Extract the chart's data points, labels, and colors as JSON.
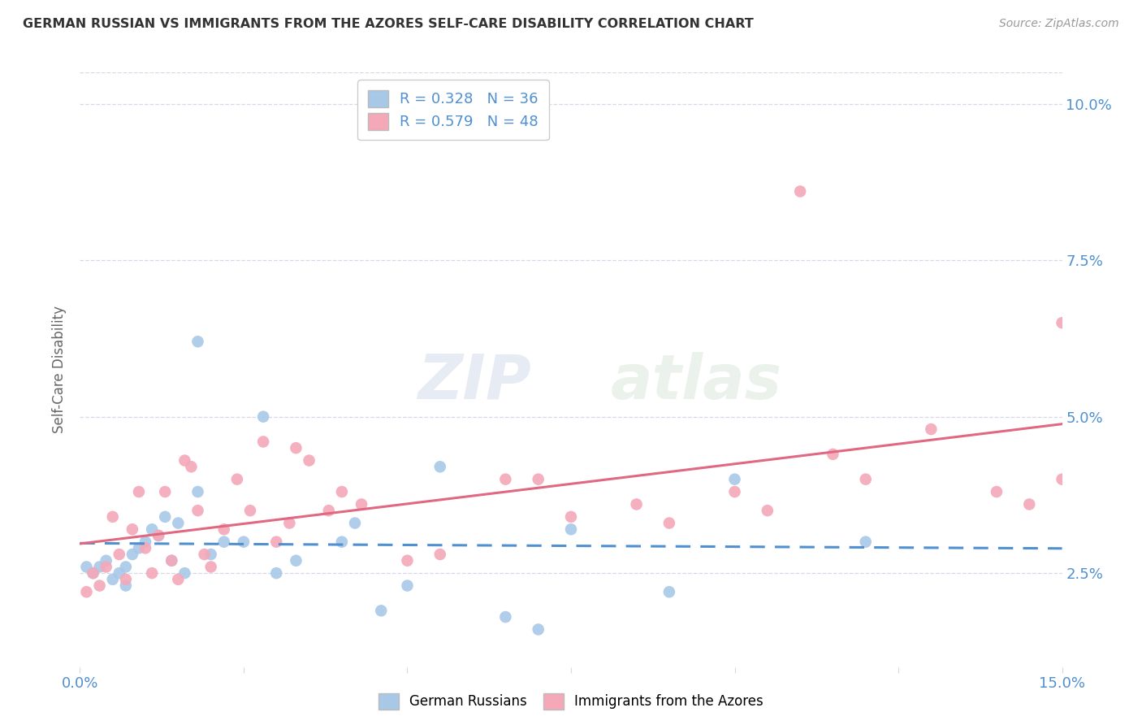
{
  "title": "GERMAN RUSSIAN VS IMMIGRANTS FROM THE AZORES SELF-CARE DISABILITY CORRELATION CHART",
  "source": "Source: ZipAtlas.com",
  "ylabel": "Self-Care Disability",
  "xlim": [
    0.0,
    0.15
  ],
  "ylim": [
    0.01,
    0.105
  ],
  "yticks": [
    0.025,
    0.05,
    0.075,
    0.1
  ],
  "ytick_labels": [
    "2.5%",
    "5.0%",
    "7.5%",
    "10.0%"
  ],
  "xticks": [
    0.0,
    0.025,
    0.05,
    0.075,
    0.1,
    0.125,
    0.15
  ],
  "xtick_labels": [
    "0.0%",
    "",
    "",
    "",
    "",
    "",
    "15.0%"
  ],
  "r_blue": 0.328,
  "n_blue": 36,
  "r_pink": 0.579,
  "n_pink": 48,
  "blue_color": "#a8c8e8",
  "pink_color": "#f4a8b8",
  "blue_line_color": "#5090d0",
  "pink_line_color": "#e06880",
  "legend_label_blue": "German Russians",
  "legend_label_pink": "Immigrants from the Azores",
  "blue_x": [
    0.001,
    0.002,
    0.003,
    0.004,
    0.005,
    0.006,
    0.007,
    0.007,
    0.008,
    0.009,
    0.01,
    0.011,
    0.012,
    0.013,
    0.014,
    0.015,
    0.016,
    0.018,
    0.018,
    0.02,
    0.022,
    0.025,
    0.028,
    0.03,
    0.033,
    0.04,
    0.042,
    0.046,
    0.05,
    0.055,
    0.065,
    0.07,
    0.075,
    0.09,
    0.1,
    0.12
  ],
  "blue_y": [
    0.026,
    0.025,
    0.026,
    0.027,
    0.024,
    0.025,
    0.023,
    0.026,
    0.028,
    0.029,
    0.03,
    0.032,
    0.031,
    0.034,
    0.027,
    0.033,
    0.025,
    0.038,
    0.062,
    0.028,
    0.03,
    0.03,
    0.05,
    0.025,
    0.027,
    0.03,
    0.033,
    0.019,
    0.023,
    0.042,
    0.018,
    0.016,
    0.032,
    0.022,
    0.04,
    0.03
  ],
  "pink_x": [
    0.001,
    0.002,
    0.003,
    0.004,
    0.005,
    0.006,
    0.007,
    0.008,
    0.009,
    0.01,
    0.011,
    0.012,
    0.013,
    0.014,
    0.015,
    0.016,
    0.017,
    0.018,
    0.019,
    0.02,
    0.022,
    0.024,
    0.026,
    0.028,
    0.03,
    0.032,
    0.033,
    0.035,
    0.038,
    0.04,
    0.043,
    0.05,
    0.055,
    0.065,
    0.07,
    0.075,
    0.085,
    0.09,
    0.1,
    0.105,
    0.11,
    0.115,
    0.12,
    0.13,
    0.14,
    0.145,
    0.15,
    0.15
  ],
  "pink_y": [
    0.022,
    0.025,
    0.023,
    0.026,
    0.034,
    0.028,
    0.024,
    0.032,
    0.038,
    0.029,
    0.025,
    0.031,
    0.038,
    0.027,
    0.024,
    0.043,
    0.042,
    0.035,
    0.028,
    0.026,
    0.032,
    0.04,
    0.035,
    0.046,
    0.03,
    0.033,
    0.045,
    0.043,
    0.035,
    0.038,
    0.036,
    0.027,
    0.028,
    0.04,
    0.04,
    0.034,
    0.036,
    0.033,
    0.038,
    0.035,
    0.086,
    0.044,
    0.04,
    0.048,
    0.038,
    0.036,
    0.065,
    0.04
  ],
  "watermark_zip": "ZIP",
  "watermark_atlas": "atlas",
  "background_color": "#ffffff",
  "grid_color": "#d8d8e8"
}
